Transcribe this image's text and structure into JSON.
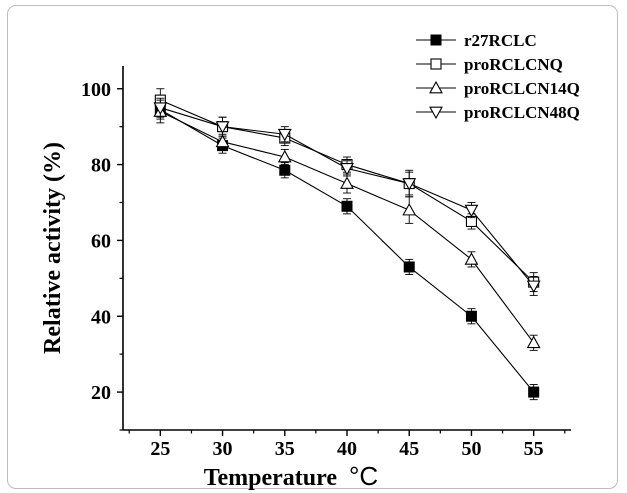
{
  "chart_data": {
    "type": "line",
    "xlabel": "Temperature",
    "xlabel_unit": "°C",
    "ylabel": "Relative activity (%)",
    "x": [
      25,
      30,
      35,
      40,
      45,
      50,
      55
    ],
    "xlim": [
      22,
      58
    ],
    "ylim": [
      10,
      106
    ],
    "xticks": [
      "25",
      "30",
      "35",
      "40",
      "45",
      "50",
      "55"
    ],
    "yticks": [
      "20",
      "40",
      "60",
      "80",
      "100"
    ],
    "legend_position": "top-right",
    "grid": false,
    "series": [
      {
        "name": "r27RCLC",
        "marker": "filled-square",
        "values": [
          94.5,
          85,
          78.5,
          69,
          53,
          40,
          20
        ],
        "errors": [
          2.5,
          2,
          2,
          2,
          2,
          2,
          2
        ]
      },
      {
        "name": "proRCLCNQ",
        "marker": "open-square",
        "values": [
          97,
          90,
          87,
          80,
          75,
          65,
          49
        ],
        "errors": [
          3,
          2.5,
          2,
          2,
          3.5,
          2,
          2.5
        ]
      },
      {
        "name": "proRCLCN14Q",
        "marker": "open-triangle-up",
        "values": [
          94,
          86,
          82,
          75,
          68,
          55,
          33
        ],
        "errors": [
          3,
          2,
          2,
          2.5,
          3.5,
          2,
          2
        ]
      },
      {
        "name": "proRCLCN48Q",
        "marker": "open-triangle-down",
        "values": [
          95,
          90,
          88,
          79,
          75,
          68,
          48
        ],
        "errors": [
          2.5,
          2.5,
          2,
          2,
          3,
          2,
          2.5
        ]
      }
    ]
  }
}
